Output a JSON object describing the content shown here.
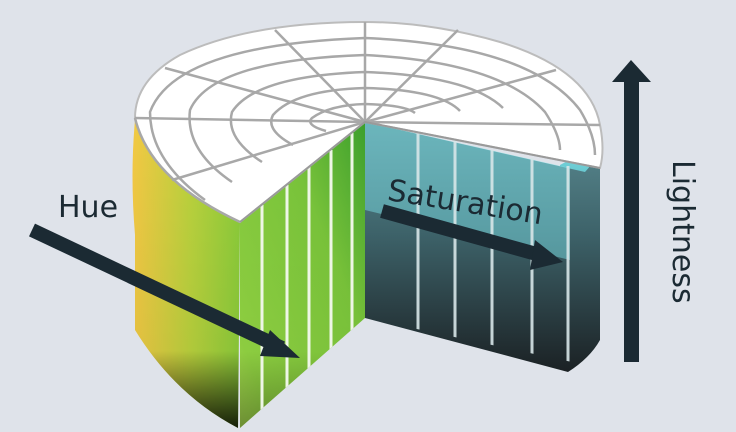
{
  "diagram": {
    "labels": {
      "hue": "Hue",
      "saturation": "Saturation",
      "lightness": "Lightness"
    },
    "colors": {
      "background": "#dfe3ea",
      "arrow": "#1b2a33",
      "top_face": "#ffffff",
      "grid_lines": "#a8a8a8",
      "yellow": "#f3c944",
      "green": "#8ccc3a",
      "cyan": "#7ee7ee",
      "dark": "#1b2124"
    }
  }
}
